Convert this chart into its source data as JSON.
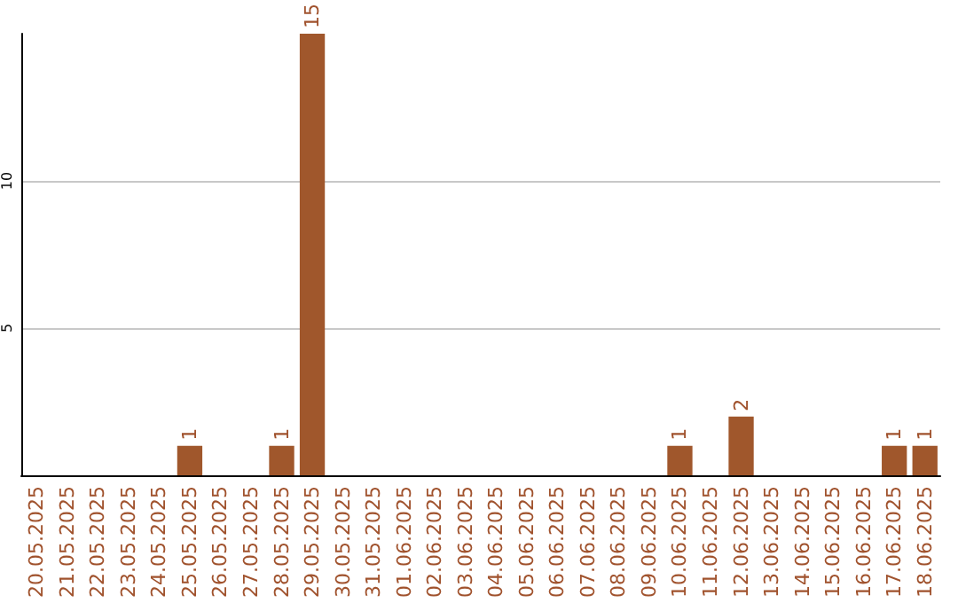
{
  "chart_data": {
    "type": "bar",
    "categories": [
      "20.05.2025",
      "21.05.2025",
      "22.05.2025",
      "23.05.2025",
      "24.05.2025",
      "25.05.2025",
      "26.05.2025",
      "27.05.2025",
      "28.05.2025",
      "29.05.2025",
      "30.05.2025",
      "31.05.2025",
      "01.06.2025",
      "02.06.2025",
      "03.06.2025",
      "04.06.2025",
      "05.06.2025",
      "06.06.2025",
      "07.06.2025",
      "08.06.2025",
      "09.06.2025",
      "10.06.2025",
      "11.06.2025",
      "12.06.2025",
      "13.06.2025",
      "14.06.2025",
      "15.06.2025",
      "16.06.2025",
      "17.06.2025",
      "18.06.2025"
    ],
    "values": [
      0,
      0,
      0,
      0,
      0,
      1,
      0,
      0,
      1,
      15,
      0,
      0,
      0,
      0,
      0,
      0,
      0,
      0,
      0,
      0,
      0,
      1,
      0,
      2,
      0,
      0,
      0,
      0,
      1,
      1
    ],
    "value_labels": [
      null,
      null,
      null,
      null,
      null,
      "1",
      null,
      null,
      "1",
      "15",
      null,
      null,
      null,
      null,
      null,
      null,
      null,
      null,
      null,
      null,
      null,
      "1",
      null,
      "2",
      null,
      null,
      null,
      null,
      "1",
      "1"
    ],
    "color": "#a0572c",
    "ylim": [
      0,
      15
    ],
    "yticks": [
      5,
      10
    ],
    "grid": "y"
  }
}
